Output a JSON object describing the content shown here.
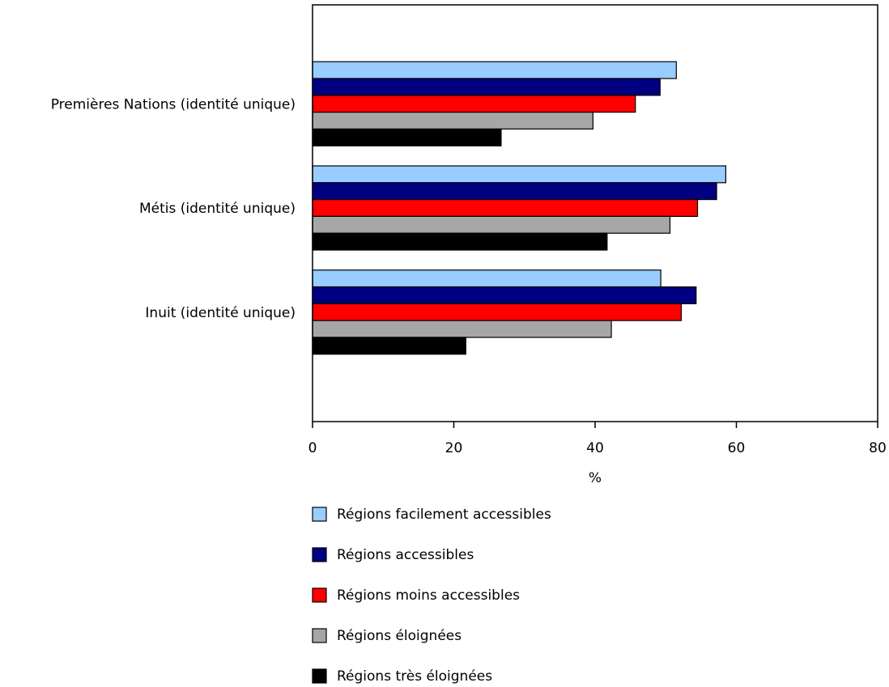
{
  "chart_data": {
    "type": "bar",
    "orientation": "horizontal",
    "title": "",
    "xlabel": "%",
    "ylabel": "",
    "xlim": [
      0,
      80
    ],
    "xticks": [
      0,
      20,
      40,
      60,
      80
    ],
    "grid": false,
    "legend_position": "bottom",
    "categories": [
      "Premières Nations (identité unique)",
      "Métis (identité unique)",
      "Inuit (identité unique)"
    ],
    "series": [
      {
        "name": "Régions facilement accessibles",
        "color": "#99ccff",
        "values": [
          51.5,
          58.5,
          49.3
        ]
      },
      {
        "name": "Régions accessibles",
        "color": "#000080",
        "values": [
          49.2,
          57.2,
          54.3
        ]
      },
      {
        "name": "Régions moins accessibles",
        "color": "#ff0000",
        "values": [
          45.7,
          54.5,
          52.2
        ]
      },
      {
        "name": "Régions éloignées",
        "color": "#a6a6a6",
        "values": [
          39.7,
          50.6,
          42.3
        ]
      },
      {
        "name": "Régions très éloignées",
        "color": "#000000",
        "values": [
          26.7,
          41.7,
          21.7
        ]
      }
    ]
  }
}
